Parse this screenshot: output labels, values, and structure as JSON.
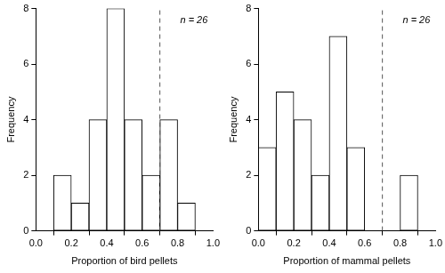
{
  "chart_data": [
    {
      "type": "histogram",
      "x_label": "Proportion of bird pellets",
      "y_label": "Frequency",
      "bins": [
        0.1,
        0.2,
        0.3,
        0.4,
        0.5,
        0.6,
        0.7,
        0.8,
        0.9
      ],
      "values": [
        2,
        1,
        4,
        8,
        4,
        2,
        4,
        1
      ],
      "color": "#000000",
      "xlim": [
        0,
        1
      ],
      "ylim": [
        0,
        8
      ],
      "xticks": [
        {
          "value": 0,
          "label": "0.0"
        },
        {
          "value": 0.2,
          "label": "0.2"
        },
        {
          "value": 0.4,
          "label": "0.4"
        },
        {
          "value": 0.6,
          "label": "0.6"
        },
        {
          "value": 0.8,
          "label": "0.8"
        },
        {
          "value": 1,
          "label": "1.0"
        }
      ],
      "yticks": [
        0,
        2,
        4,
        6,
        8
      ],
      "grid": false,
      "annotations": [
        {
          "text": "n = 26"
        }
      ],
      "reference_lines": [
        {
          "x": 0.7,
          "line_style": "dashed"
        }
      ]
    },
    {
      "type": "histogram",
      "x_label": "Proportion of mammal pellets",
      "y_label": "Frequency",
      "bins": [
        0,
        0.1,
        0.2,
        0.3,
        0.4,
        0.5,
        0.6,
        0.7,
        0.8,
        0.9
      ],
      "values": [
        3,
        5,
        4,
        2,
        7,
        3,
        0,
        0,
        2
      ],
      "color": "#000000",
      "xlim": [
        0,
        1
      ],
      "ylim": [
        0,
        8
      ],
      "xticks": [
        {
          "value": 0,
          "label": "0.0"
        },
        {
          "value": 0.2,
          "label": "0.2"
        },
        {
          "value": 0.4,
          "label": "0.4"
        },
        {
          "value": 0.6,
          "label": "0.6"
        },
        {
          "value": 0.8,
          "label": "0.8"
        },
        {
          "value": 1,
          "label": "1.0"
        }
      ],
      "yticks": [
        0,
        2,
        4,
        6,
        8
      ],
      "grid": false,
      "annotations": [
        {
          "text": "n = 26"
        }
      ],
      "reference_lines": [
        {
          "x": 0.7,
          "line_style": "dashed"
        }
      ]
    }
  ]
}
